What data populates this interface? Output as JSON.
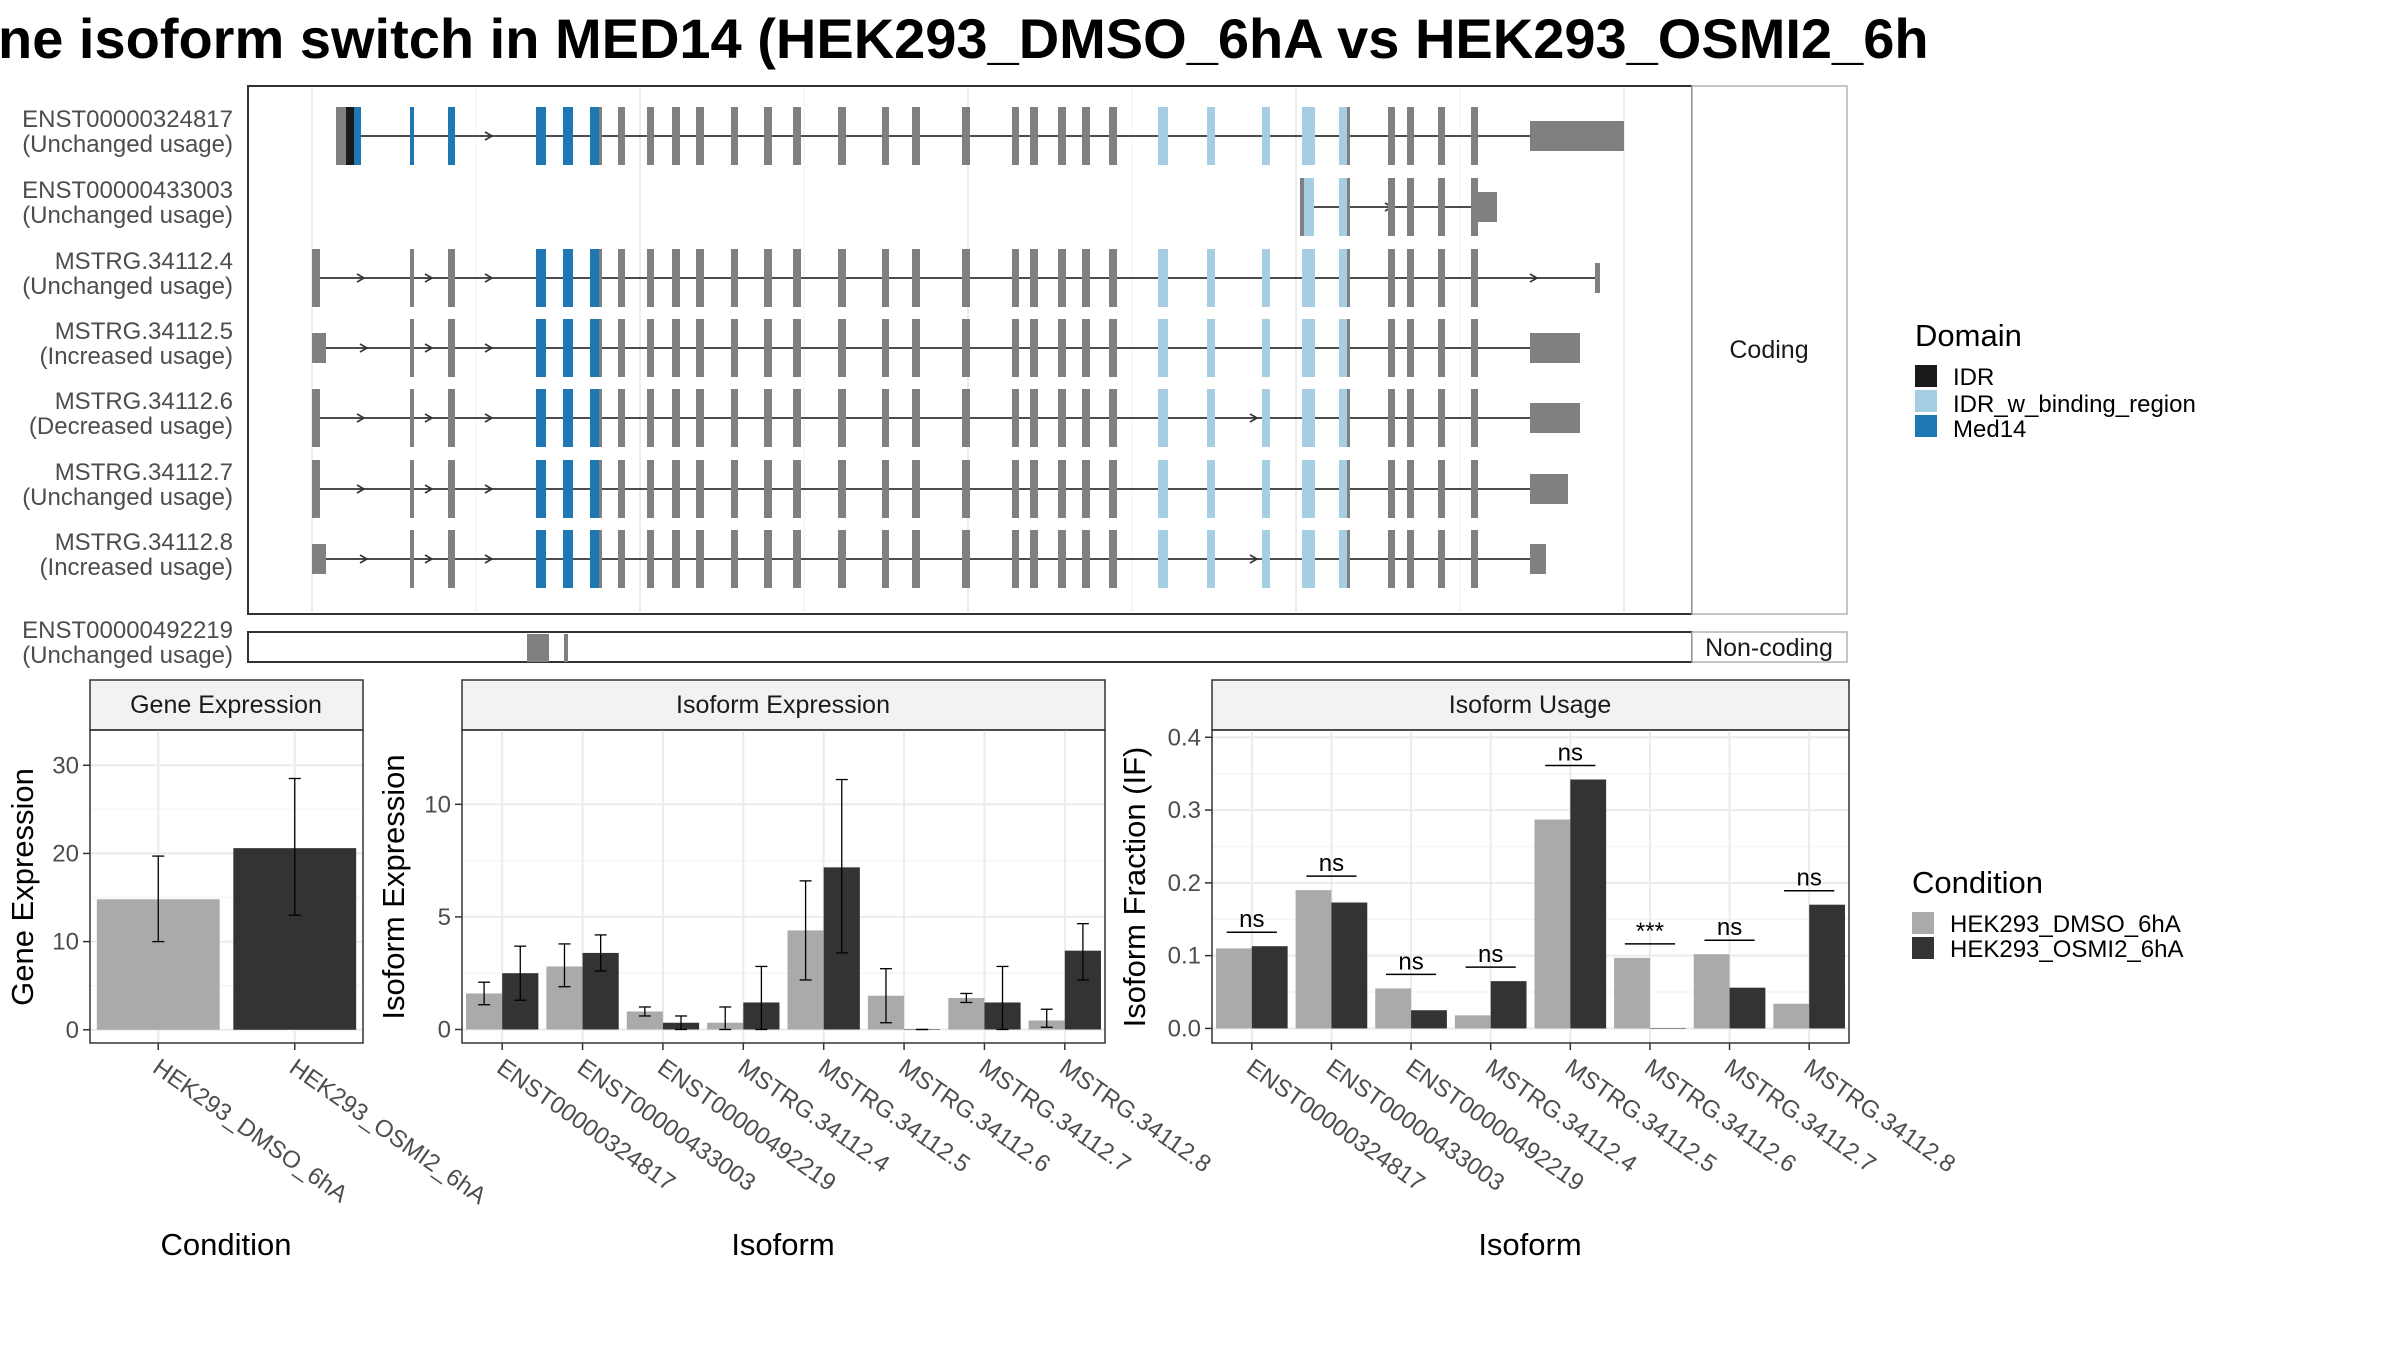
{
  "title": "ne isoform switch in MED14 (HEK293_DMSO_6hA vs HEK293_OSMI2_6h",
  "colors": {
    "IDR": "#1a1a1a",
    "IDR_w_binding_region": "#a6cee3",
    "Med14": "#1f78b4",
    "exon": "#808080",
    "HEK293_DMSO_6hA": "#aaaaaa",
    "HEK293_OSMI2_6hA": "#333333",
    "grid": "#ebebeb",
    "strip": "#f2f2f2"
  },
  "chart_data": [
    {
      "type": "gene-structure",
      "strips": {
        "coding": "Coding",
        "noncoding": "Non-coding"
      },
      "legend": {
        "title": "Domain",
        "items": [
          {
            "label": "IDR",
            "color": "#1a1a1a"
          },
          {
            "label": "IDR_w_binding_region",
            "color": "#a6cee3"
          },
          {
            "label": "Med14",
            "color": "#1f78b4"
          }
        ]
      },
      "transcripts": [
        {
          "name": "ENST00000324817",
          "status": "(Unchanged usage)",
          "group": "coding"
        },
        {
          "name": "ENST00000433003",
          "status": "(Unchanged usage)",
          "group": "coding"
        },
        {
          "name": "MSTRG.34112.4",
          "status": "(Unchanged usage)",
          "group": "coding"
        },
        {
          "name": "MSTRG.34112.5",
          "status": "(Increased usage)",
          "group": "coding"
        },
        {
          "name": "MSTRG.34112.6",
          "status": "(Decreased usage)",
          "group": "coding"
        },
        {
          "name": "MSTRG.34112.7",
          "status": "(Unchanged usage)",
          "group": "coding"
        },
        {
          "name": "MSTRG.34112.8",
          "status": "(Increased usage)",
          "group": "coding"
        },
        {
          "name": "ENST00000492219",
          "status": "(Unchanged usage)",
          "group": "noncoding"
        }
      ]
    },
    {
      "type": "bar",
      "strip": "Gene Expression",
      "ylabel": "Gene Expression",
      "xlabel": "Condition",
      "ylim": [
        -1.5,
        34
      ],
      "yticks": [
        0,
        10,
        20,
        30
      ],
      "categories": [
        "HEK293_DMSO_6hA",
        "HEK293_OSMI2_6hA"
      ],
      "values": [
        14.8,
        20.6
      ],
      "error_low": [
        10.0,
        13.0
      ],
      "error_high": [
        19.7,
        28.5
      ]
    },
    {
      "type": "bar",
      "strip": "Isoform Expression",
      "ylabel": "Isoform Expression",
      "xlabel": "Isoform",
      "ylim": [
        -0.6,
        13.3
      ],
      "yticks": [
        0,
        5,
        10
      ],
      "categories": [
        "ENST00000324817",
        "ENST00000433003",
        "ENST00000492219",
        "MSTRG.34112.4",
        "MSTRG.34112.5",
        "MSTRG.34112.6",
        "MSTRG.34112.7",
        "MSTRG.34112.8"
      ],
      "series": [
        {
          "name": "HEK293_DMSO_6hA",
          "values": [
            1.6,
            2.8,
            0.8,
            0.3,
            4.4,
            1.5,
            1.4,
            0.4
          ],
          "error_low": [
            1.1,
            1.9,
            0.6,
            0.0,
            2.2,
            0.3,
            1.2,
            0.1
          ],
          "error_high": [
            2.1,
            3.8,
            1.0,
            1.0,
            6.6,
            2.7,
            1.6,
            0.9
          ]
        },
        {
          "name": "HEK293_OSMI2_6hA",
          "values": [
            2.5,
            3.4,
            0.3,
            1.2,
            7.2,
            0.0,
            1.2,
            3.5
          ],
          "error_low": [
            1.3,
            2.6,
            0.0,
            0.0,
            3.4,
            0.0,
            0.0,
            2.2
          ],
          "error_high": [
            3.7,
            4.2,
            0.6,
            2.8,
            11.1,
            0.0,
            2.8,
            4.7
          ]
        }
      ]
    },
    {
      "type": "bar",
      "strip": "Isoform Usage",
      "ylabel": "Isoform Fraction (IF)",
      "xlabel": "Isoform",
      "ylim": [
        -0.02,
        0.41
      ],
      "yticks": [
        0.0,
        0.1,
        0.2,
        0.3,
        0.4
      ],
      "ytick_labels": [
        "0.0",
        "0.1",
        "0.2",
        "0.3",
        "0.4"
      ],
      "categories": [
        "ENST00000324817",
        "ENST00000433003",
        "ENST00000492219",
        "MSTRG.34112.4",
        "MSTRG.34112.5",
        "MSTRG.34112.6",
        "MSTRG.34112.7",
        "MSTRG.34112.8"
      ],
      "series": [
        {
          "name": "HEK293_DMSO_6hA",
          "values": [
            0.11,
            0.19,
            0.055,
            0.018,
            0.287,
            0.097,
            0.102,
            0.034
          ]
        },
        {
          "name": "HEK293_OSMI2_6hA",
          "values": [
            0.113,
            0.173,
            0.025,
            0.065,
            0.342,
            0.0,
            0.056,
            0.17
          ]
        }
      ],
      "significance": [
        "ns",
        "ns",
        "ns",
        "ns",
        "ns",
        "***",
        "ns",
        "ns"
      ]
    }
  ],
  "condition_legend": {
    "title": "Condition",
    "items": [
      {
        "label": "HEK293_DMSO_6hA",
        "color": "#aaaaaa"
      },
      {
        "label": "HEK293_OSMI2_6hA",
        "color": "#333333"
      }
    ]
  }
}
